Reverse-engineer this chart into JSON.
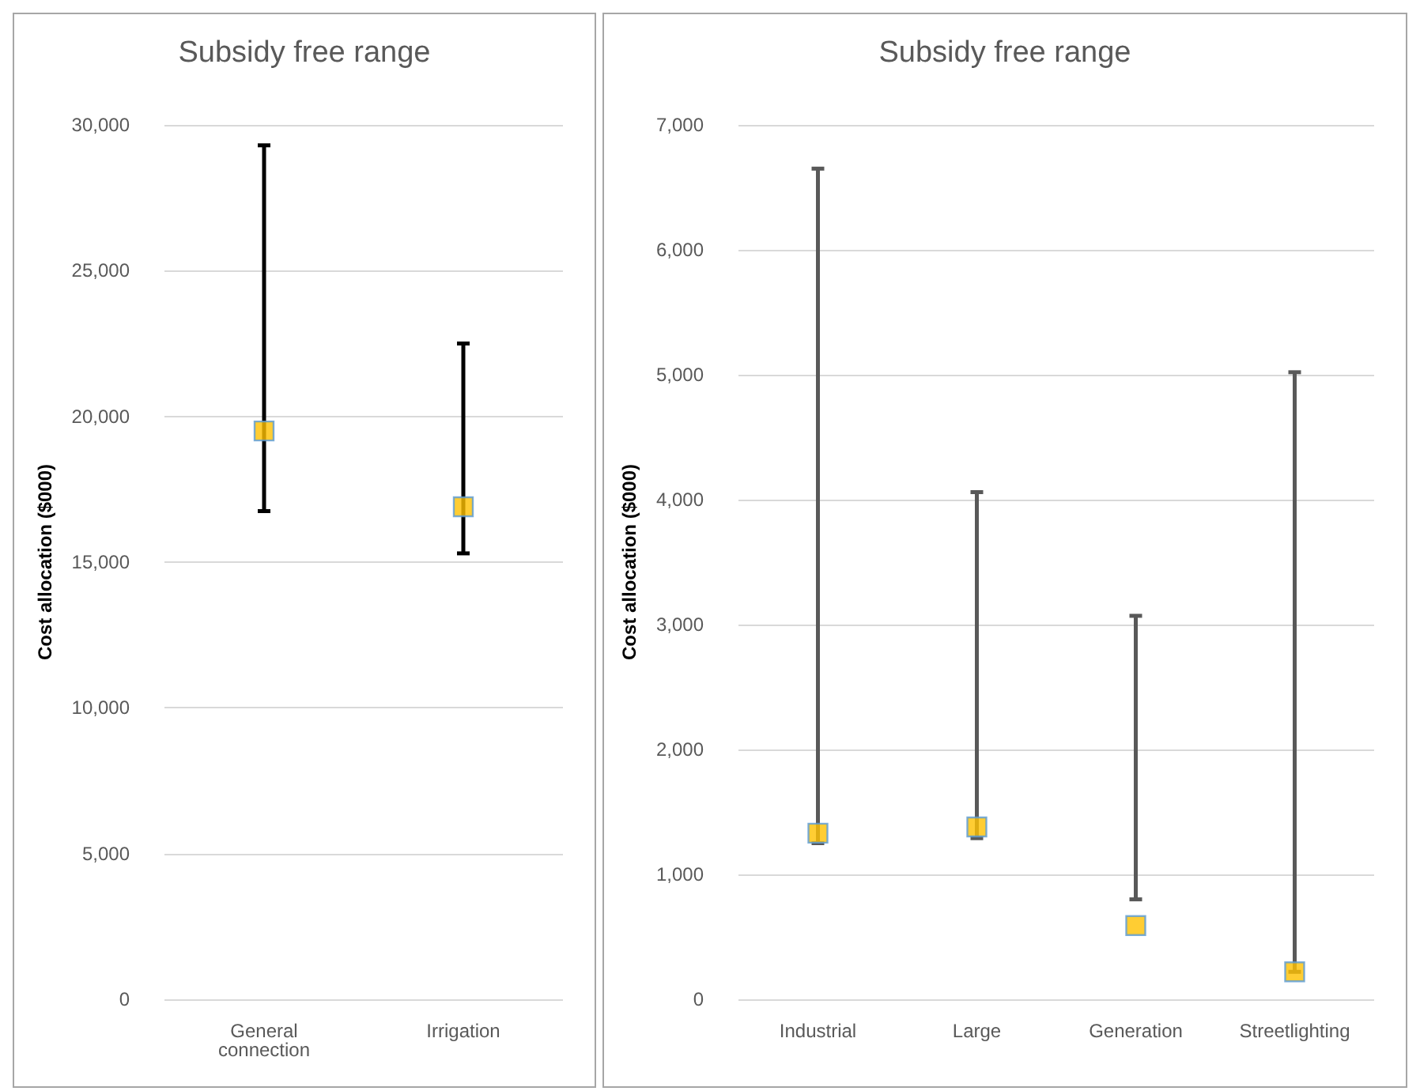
{
  "chart_data": [
    {
      "type": "scatter",
      "title": "Subsidy free range",
      "ylabel": "Cost allocation ($000)",
      "categories": [
        "General connection",
        "Irrigation"
      ],
      "values": [
        19500,
        16900
      ],
      "errors": [
        [
          16750,
          29300
        ],
        [
          15300,
          22500
        ]
      ],
      "color": "#ffc000",
      "marker": "square",
      "ylim": [
        0,
        30000
      ],
      "yticks": [
        {
          "value": 0,
          "label": "0"
        },
        {
          "value": 5000,
          "label": "5,000"
        },
        {
          "value": 10000,
          "label": "10,000"
        },
        {
          "value": 15000,
          "label": "15,000"
        },
        {
          "value": 20000,
          "label": "20,000"
        },
        {
          "value": 25000,
          "label": "25,000"
        },
        {
          "value": 30000,
          "label": "30,000"
        }
      ],
      "grid": "y"
    },
    {
      "type": "scatter",
      "title": "Subsidy free range",
      "ylabel": "Cost allocation ($000)",
      "categories": [
        "Industrial",
        "Large",
        "Generation",
        "Streetlighting"
      ],
      "values": [
        1330,
        1380,
        590,
        220
      ],
      "errors": [
        [
          1250,
          6650
        ],
        [
          1290,
          4060
        ],
        [
          800,
          3070
        ],
        [
          220,
          5020
        ]
      ],
      "color": "#ffc000",
      "marker": "square",
      "ylim": [
        0,
        7000
      ],
      "yticks": [
        {
          "value": 0,
          "label": "0"
        },
        {
          "value": 1000,
          "label": "1,000"
        },
        {
          "value": 2000,
          "label": "2,000"
        },
        {
          "value": 3000,
          "label": "3,000"
        },
        {
          "value": 4000,
          "label": "4,000"
        },
        {
          "value": 5000,
          "label": "5,000"
        },
        {
          "value": 6000,
          "label": "6,000"
        },
        {
          "value": 7000,
          "label": "7,000"
        }
      ],
      "grid": "y"
    }
  ]
}
